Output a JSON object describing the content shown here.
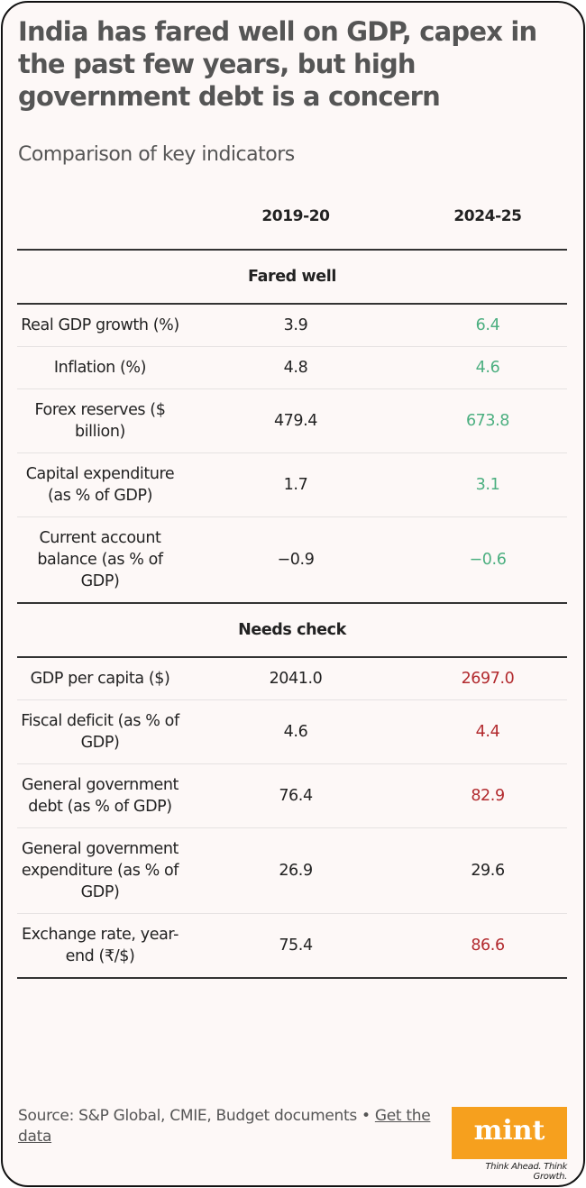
{
  "title": "India has fared well on GDP, capex in the past few years, but high government debt is a concern",
  "subtitle": "Comparison of key indicators",
  "colors": {
    "improved": "#4caf80",
    "worsened": "#b22a2e",
    "logo": "#f6a01e"
  },
  "chart_data": {
    "type": "table",
    "columns": [
      "",
      "2019-20",
      "2024-25"
    ],
    "sections": [
      {
        "name": "Fared well",
        "rows": [
          {
            "label": "Real GDP growth (%)",
            "v2019": "3.9",
            "v2024": "6.4",
            "status": "good"
          },
          {
            "label": "Inflation (%)",
            "v2019": "4.8",
            "v2024": "4.6",
            "status": "good"
          },
          {
            "label": "Forex reserves ($ billion)",
            "v2019": "479.4",
            "v2024": "673.8",
            "status": "good"
          },
          {
            "label": "Capital expenditure (as % of GDP)",
            "v2019": "1.7",
            "v2024": "3.1",
            "status": "good"
          },
          {
            "label": "Current account balance (as % of GDP)",
            "v2019": "−0.9",
            "v2024": "−0.6",
            "status": "good"
          }
        ]
      },
      {
        "name": "Needs check",
        "rows": [
          {
            "label": "GDP per capita ($)",
            "v2019": "2041.0",
            "v2024": "2697.0",
            "status": "bad"
          },
          {
            "label": "Fiscal deficit (as % of GDP)",
            "v2019": "4.6",
            "v2024": "4.4",
            "status": "bad"
          },
          {
            "label": "General government debt (as % of GDP)",
            "v2019": "76.4",
            "v2024": "82.9",
            "status": "bad"
          },
          {
            "label": "General government expenditure (as % of GDP)",
            "v2019": "26.9",
            "v2024": "29.6",
            "status": "neutral"
          },
          {
            "label": "Exchange rate, year-end (₹/$)",
            "v2019": "75.4",
            "v2024": "86.6",
            "status": "bad"
          }
        ]
      }
    ]
  },
  "footer": {
    "source": "Source: S&P Global, CMIE, Budget documents • ",
    "link": "Get the data",
    "logo": "mint",
    "tagline": "Think Ahead. Think Growth."
  }
}
